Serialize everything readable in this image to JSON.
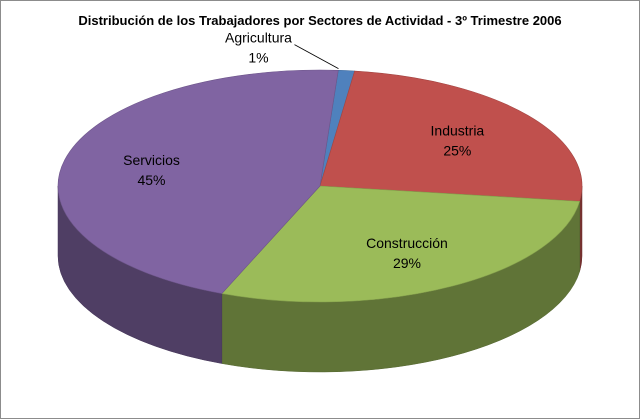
{
  "chart_data": {
    "type": "pie",
    "title": "Distribución de los Trabajadores por Sectores de Actividad - 3º Trimestre 2006",
    "labels": [
      "Agricultura",
      "Industria",
      "Construcción",
      "Servicios"
    ],
    "values": [
      1,
      25,
      29,
      45
    ],
    "value_labels": [
      "1%",
      "25%",
      "29%",
      "45%"
    ],
    "colors": [
      "#4f81bd",
      "#c0504d",
      "#9bbb59",
      "#8064a2"
    ],
    "style": "3d",
    "legend": "none"
  }
}
